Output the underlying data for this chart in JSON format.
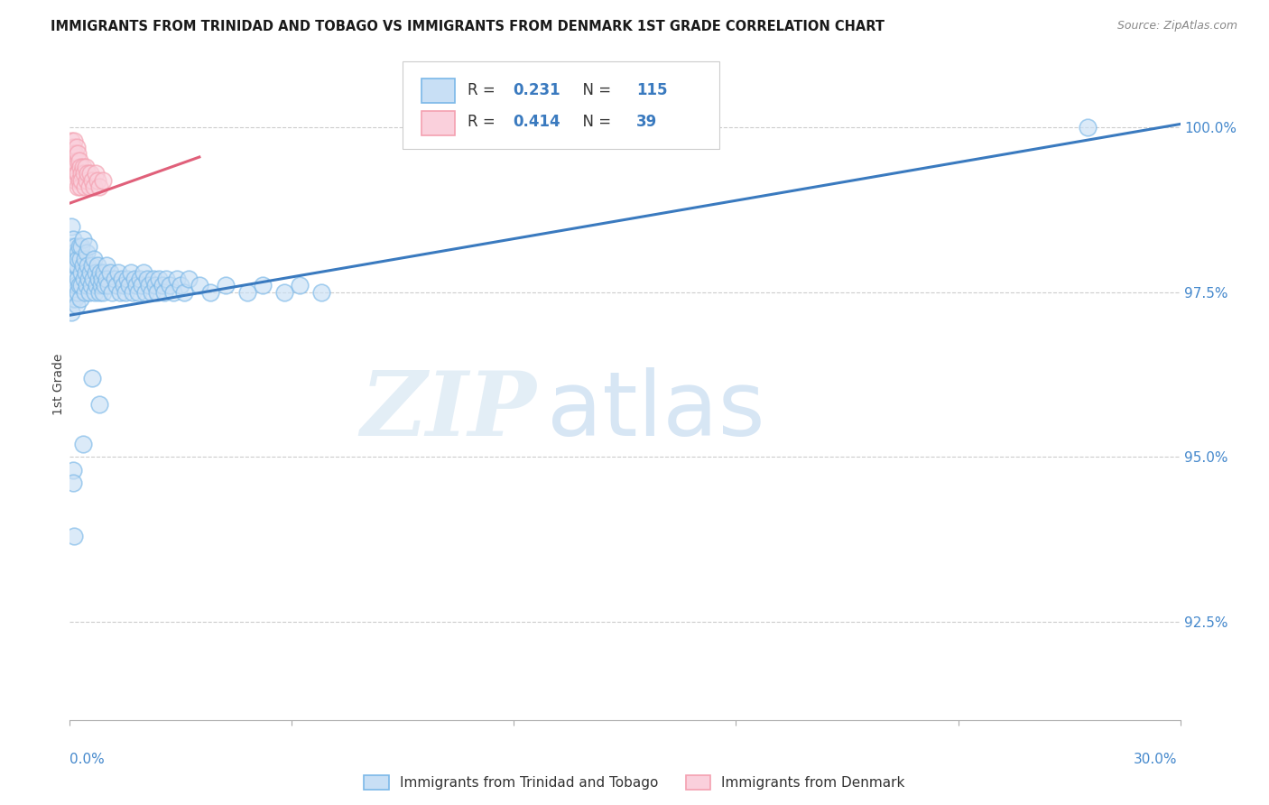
{
  "title": "IMMIGRANTS FROM TRINIDAD AND TOBAGO VS IMMIGRANTS FROM DENMARK 1ST GRADE CORRELATION CHART",
  "source": "Source: ZipAtlas.com",
  "ylabel": "1st Grade",
  "y_ticks": [
    92.5,
    95.0,
    97.5,
    100.0
  ],
  "y_tick_labels": [
    "92.5%",
    "95.0%",
    "97.5%",
    "100.0%"
  ],
  "x_min": 0.0,
  "x_max": 30.0,
  "y_min": 91.0,
  "y_max": 101.2,
  "blue_R": 0.231,
  "blue_N": 115,
  "pink_R": 0.414,
  "pink_N": 39,
  "blue_color": "#7bb8e8",
  "pink_color": "#f4a0b0",
  "blue_line_color": "#3a7abf",
  "pink_line_color": "#e0607a",
  "legend_label_blue": "Immigrants from Trinidad and Tobago",
  "legend_label_pink": "Immigrants from Denmark",
  "watermark_zip": "ZIP",
  "watermark_atlas": "atlas",
  "background_color": "#ffffff",
  "blue_line_x0": 0.0,
  "blue_line_y0": 97.15,
  "blue_line_x1": 30.0,
  "blue_line_y1": 100.05,
  "pink_line_x0": 0.0,
  "pink_line_y0": 98.85,
  "pink_line_x1": 3.5,
  "pink_line_y1": 99.55,
  "blue_points_x": [
    0.05,
    0.05,
    0.05,
    0.05,
    0.05,
    0.05,
    0.07,
    0.07,
    0.08,
    0.08,
    0.1,
    0.1,
    0.1,
    0.12,
    0.12,
    0.14,
    0.15,
    0.15,
    0.15,
    0.17,
    0.18,
    0.18,
    0.2,
    0.2,
    0.22,
    0.22,
    0.25,
    0.25,
    0.28,
    0.28,
    0.3,
    0.3,
    0.32,
    0.35,
    0.35,
    0.38,
    0.4,
    0.4,
    0.42,
    0.45,
    0.45,
    0.48,
    0.5,
    0.5,
    0.52,
    0.55,
    0.58,
    0.6,
    0.62,
    0.65,
    0.68,
    0.7,
    0.72,
    0.75,
    0.78,
    0.8,
    0.82,
    0.85,
    0.88,
    0.9,
    0.92,
    0.95,
    0.98,
    1.0,
    1.05,
    1.1,
    1.15,
    1.2,
    1.25,
    1.3,
    1.35,
    1.4,
    1.45,
    1.5,
    1.55,
    1.6,
    1.65,
    1.7,
    1.75,
    1.8,
    1.85,
    1.9,
    1.95,
    2.0,
    2.05,
    2.1,
    2.15,
    2.2,
    2.25,
    2.3,
    2.35,
    2.4,
    2.5,
    2.55,
    2.6,
    2.7,
    2.8,
    2.9,
    3.0,
    3.1,
    3.2,
    3.5,
    3.8,
    4.2,
    4.8,
    5.2,
    5.8,
    6.2,
    6.8,
    0.08,
    0.1,
    0.12,
    0.35,
    0.6,
    0.8,
    27.5
  ],
  "blue_points_y": [
    97.2,
    97.5,
    97.8,
    98.0,
    98.2,
    98.5,
    97.6,
    98.1,
    97.4,
    97.9,
    97.7,
    98.0,
    98.3,
    97.5,
    98.1,
    97.8,
    97.4,
    97.9,
    98.2,
    97.6,
    97.3,
    97.9,
    97.7,
    98.1,
    97.5,
    98.0,
    97.6,
    98.2,
    97.4,
    98.0,
    97.8,
    98.2,
    97.6,
    97.9,
    98.3,
    97.7,
    97.5,
    98.0,
    97.8,
    97.6,
    98.1,
    97.9,
    97.7,
    98.2,
    97.5,
    97.8,
    97.6,
    97.9,
    97.7,
    98.0,
    97.5,
    97.8,
    97.6,
    97.9,
    97.7,
    97.5,
    97.8,
    97.6,
    97.7,
    97.5,
    97.8,
    97.6,
    97.9,
    97.7,
    97.6,
    97.8,
    97.5,
    97.7,
    97.6,
    97.8,
    97.5,
    97.7,
    97.6,
    97.5,
    97.7,
    97.6,
    97.8,
    97.5,
    97.7,
    97.6,
    97.5,
    97.7,
    97.6,
    97.8,
    97.5,
    97.7,
    97.6,
    97.5,
    97.7,
    97.6,
    97.5,
    97.7,
    97.6,
    97.5,
    97.7,
    97.6,
    97.5,
    97.7,
    97.6,
    97.5,
    97.7,
    97.6,
    97.5,
    97.6,
    97.5,
    97.6,
    97.5,
    97.6,
    97.5,
    94.8,
    94.6,
    93.8,
    95.2,
    96.2,
    95.8,
    100.0
  ],
  "pink_points_x": [
    0.05,
    0.05,
    0.07,
    0.08,
    0.08,
    0.1,
    0.1,
    0.12,
    0.12,
    0.14,
    0.15,
    0.15,
    0.18,
    0.18,
    0.2,
    0.2,
    0.22,
    0.22,
    0.25,
    0.25,
    0.28,
    0.28,
    0.3,
    0.32,
    0.35,
    0.38,
    0.4,
    0.42,
    0.45,
    0.48,
    0.52,
    0.55,
    0.6,
    0.65,
    0.7,
    0.75,
    0.8,
    0.9,
    13.5
  ],
  "pink_points_y": [
    99.5,
    99.8,
    99.6,
    99.4,
    99.7,
    99.3,
    99.6,
    99.5,
    99.8,
    99.4,
    99.2,
    99.6,
    99.3,
    99.7,
    99.1,
    99.5,
    99.3,
    99.6,
    99.2,
    99.5,
    99.1,
    99.4,
    99.3,
    99.2,
    99.4,
    99.3,
    99.1,
    99.4,
    99.2,
    99.3,
    99.1,
    99.3,
    99.2,
    99.1,
    99.3,
    99.2,
    99.1,
    99.2,
    100.0
  ]
}
